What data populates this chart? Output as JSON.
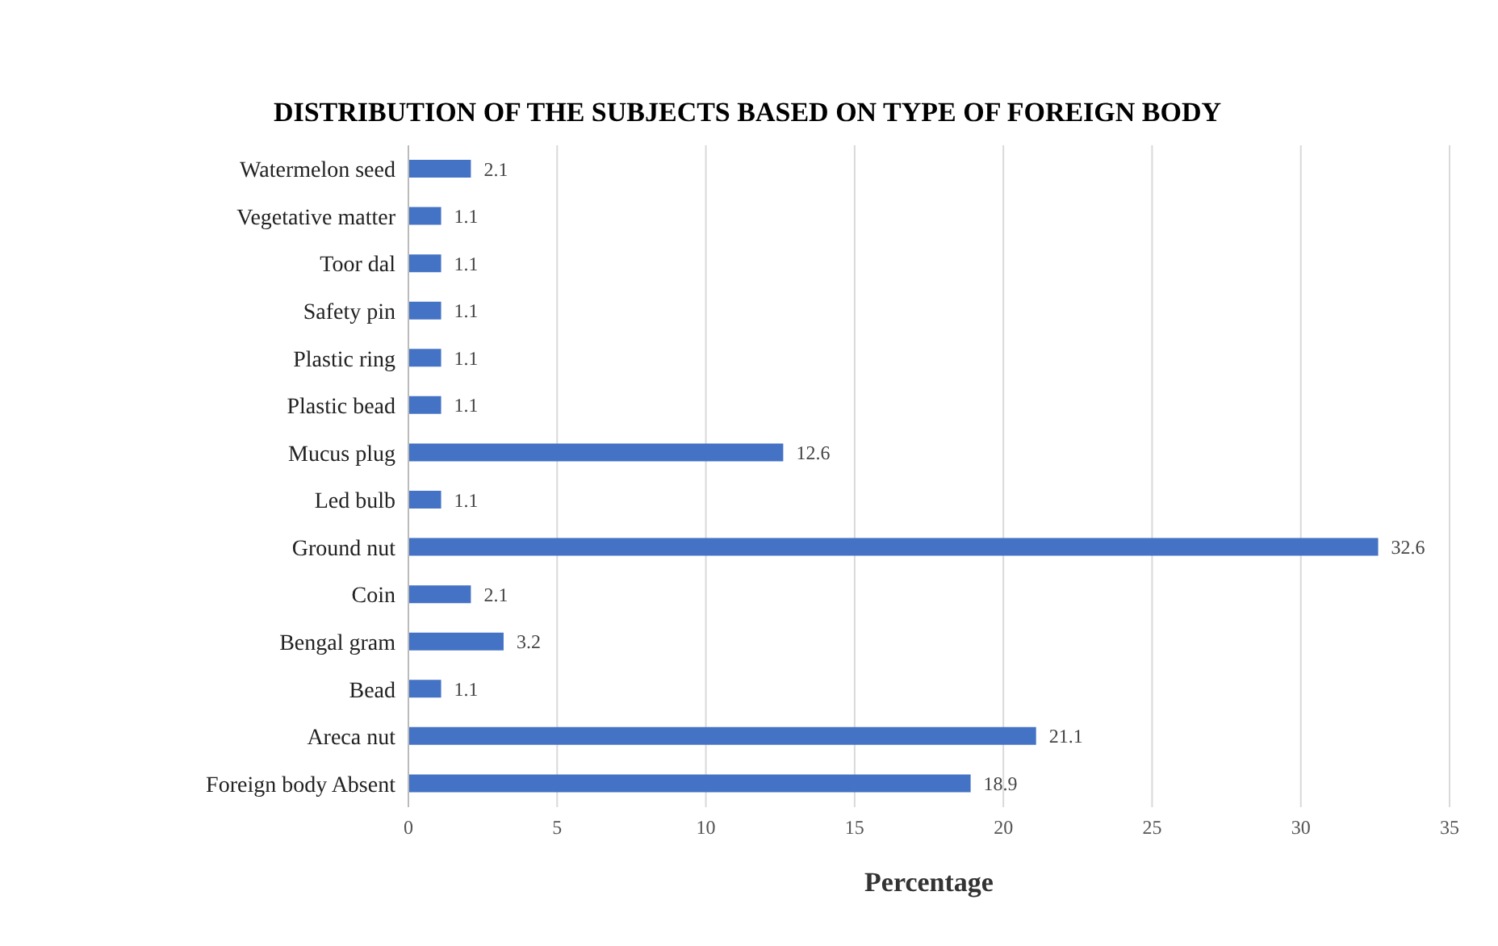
{
  "chart_data": {
    "type": "bar",
    "orientation": "horizontal",
    "title": "DISTRIBUTION  OF THE SUBJECTS BASED ON TYPE OF FOREIGN BODY",
    "xlabel": "Percentage",
    "categories": [
      "Watermelon seed",
      "Vegetative matter",
      "Toor dal",
      "Safety pin",
      "Plastic ring",
      "Plastic bead",
      "Mucus plug",
      "Led bulb",
      "Ground nut",
      "Coin",
      "Bengal gram",
      "Bead",
      "Areca nut",
      "Foreign body Absent"
    ],
    "values": [
      2.1,
      1.1,
      1.1,
      1.1,
      1.1,
      1.1,
      12.6,
      1.1,
      32.6,
      2.1,
      3.2,
      1.1,
      21.1,
      18.9
    ],
    "color": "#4472c4",
    "xlim": [
      0,
      35
    ],
    "xticks": [
      0,
      5,
      10,
      15,
      20,
      25,
      30,
      35
    ],
    "grid": "x",
    "data_labels": true
  }
}
